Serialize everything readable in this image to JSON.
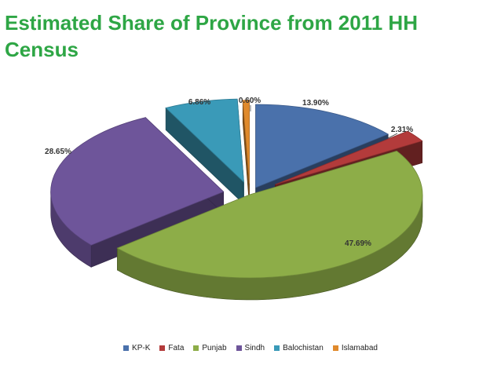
{
  "slide": {
    "title": "Estimated Share of Province from 2011 HH Census"
  },
  "chart_data": {
    "type": "pie",
    "title": "Estimated Share of Province from 2011 HH Census",
    "three_d": true,
    "exploded": true,
    "legend_position": "bottom",
    "categories": [
      "KP-K",
      "Fata",
      "Punjab",
      "Sindh",
      "Balochistan",
      "Islamabad"
    ],
    "values": [
      13.9,
      2.31,
      47.69,
      28.65,
      6.86,
      0.6
    ],
    "value_labels": [
      "13.90%",
      "2.31%",
      "47.69%",
      "28.65%",
      "6.86%",
      "0.60%"
    ],
    "colors": [
      "#4a71ab",
      "#b33b3b",
      "#8dad48",
      "#6e559a",
      "#3a9ab8",
      "#e08a2c"
    ]
  }
}
